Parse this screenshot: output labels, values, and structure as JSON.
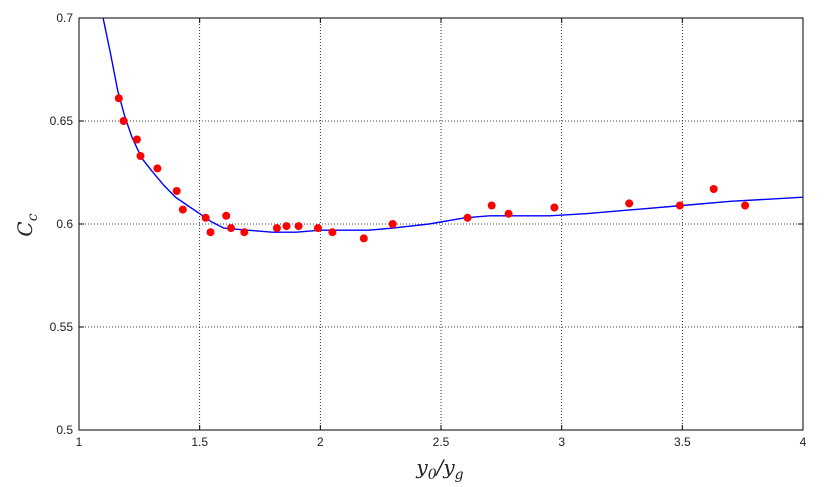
{
  "chart_data": {
    "type": "scatter",
    "xlabel": "y0/yg",
    "ylabel": "Cc",
    "xlim": [
      1,
      4
    ],
    "ylim": [
      0.5,
      0.7
    ],
    "xticks": [
      "1",
      "1.5",
      "2",
      "2.5",
      "3",
      "3.5",
      "4"
    ],
    "yticks": [
      "0.5",
      "0.55",
      "0.6",
      "0.65",
      "0.7"
    ],
    "grid": true,
    "colors": {
      "points": "#ff0000",
      "curve": "#0000ff"
    },
    "points": [
      [
        1.165,
        0.661
      ],
      [
        1.185,
        0.65
      ],
      [
        1.24,
        0.641
      ],
      [
        1.255,
        0.633
      ],
      [
        1.325,
        0.627
      ],
      [
        1.405,
        0.616
      ],
      [
        1.43,
        0.607
      ],
      [
        1.525,
        0.603
      ],
      [
        1.545,
        0.596
      ],
      [
        1.61,
        0.604
      ],
      [
        1.63,
        0.598
      ],
      [
        1.685,
        0.596
      ],
      [
        1.82,
        0.598
      ],
      [
        1.86,
        0.599
      ],
      [
        1.91,
        0.599
      ],
      [
        1.99,
        0.598
      ],
      [
        2.05,
        0.596
      ],
      [
        2.18,
        0.593
      ],
      [
        2.3,
        0.6
      ],
      [
        2.61,
        0.603
      ],
      [
        2.71,
        0.609
      ],
      [
        2.78,
        0.605
      ],
      [
        2.97,
        0.608
      ],
      [
        3.28,
        0.61
      ],
      [
        3.49,
        0.609
      ],
      [
        3.63,
        0.617
      ],
      [
        3.76,
        0.609
      ]
    ],
    "curve": [
      [
        1.1,
        0.7
      ],
      [
        1.13,
        0.683
      ],
      [
        1.16,
        0.665
      ],
      [
        1.19,
        0.652
      ],
      [
        1.22,
        0.642
      ],
      [
        1.26,
        0.632
      ],
      [
        1.3,
        0.626
      ],
      [
        1.35,
        0.619
      ],
      [
        1.4,
        0.613
      ],
      [
        1.45,
        0.609
      ],
      [
        1.5,
        0.605
      ],
      [
        1.55,
        0.601
      ],
      [
        1.6,
        0.598
      ],
      [
        1.7,
        0.597
      ],
      [
        1.8,
        0.596
      ],
      [
        1.9,
        0.596
      ],
      [
        2.0,
        0.597
      ],
      [
        2.1,
        0.597
      ],
      [
        2.2,
        0.597
      ],
      [
        2.3,
        0.598
      ],
      [
        2.45,
        0.6
      ],
      [
        2.6,
        0.603
      ],
      [
        2.7,
        0.604
      ],
      [
        2.8,
        0.604
      ],
      [
        2.95,
        0.604
      ],
      [
        3.1,
        0.605
      ],
      [
        3.3,
        0.607
      ],
      [
        3.5,
        0.609
      ],
      [
        3.7,
        0.611
      ],
      [
        3.85,
        0.612
      ],
      [
        4.0,
        0.613
      ]
    ]
  }
}
